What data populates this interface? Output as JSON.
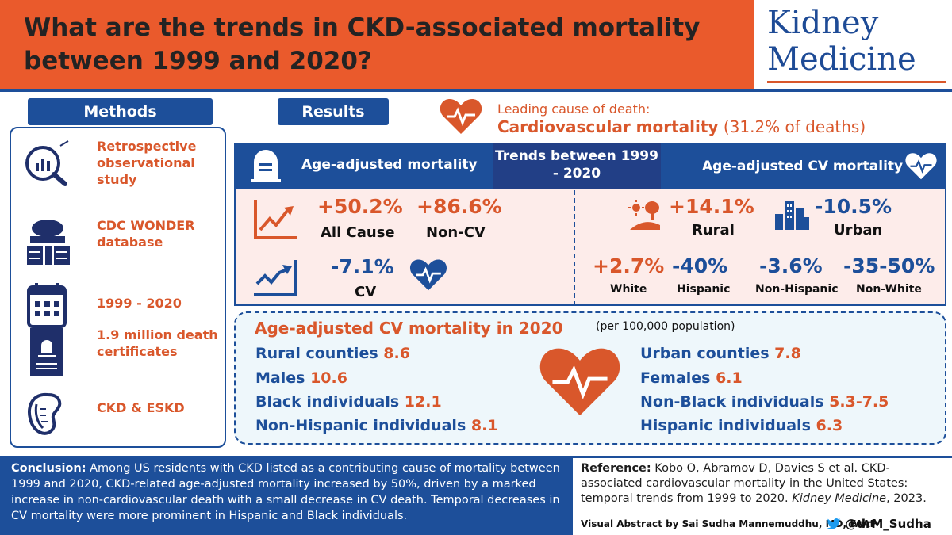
{
  "header": {
    "title": "What are the trends in CKD-associated mortality between 1999 and 2020?"
  },
  "logo": {
    "line1": "Kidney",
    "line2": "Medicine"
  },
  "methods": {
    "tab": "Methods",
    "items": [
      {
        "text": "Retrospective observational study",
        "icon": "study-icon"
      },
      {
        "text": "CDC WONDER database",
        "icon": "database-icon"
      },
      {
        "text": "1999 - 2020",
        "icon": "calendar-icon"
      },
      {
        "text": "1.9 million death certificates",
        "icon": "death-certificate-icon"
      },
      {
        "text": "CKD & ESKD",
        "icon": "kidney-icon"
      }
    ]
  },
  "results": {
    "tab": "Results",
    "leading_cause_label": "Leading cause of death:",
    "leading_cause_main": "Cardiovascular mortality",
    "leading_cause_pct": "(31.2% of deaths)",
    "header_left": "Age-adjusted mortality",
    "header_center": "Trends between 1999 - 2020",
    "header_right": "Age-adjusted CV mortality",
    "left": {
      "all_cause_pct": "+50.2%",
      "all_cause_label": "All Cause",
      "non_cv_pct": "+86.6%",
      "non_cv_label": "Non-CV",
      "cv_pct": "-7.1%",
      "cv_label": "CV"
    },
    "right": {
      "rural_pct": "+14.1%",
      "rural_label": "Rural",
      "urban_pct": "-10.5%",
      "urban_label": "Urban",
      "white_pct": "+2.7%",
      "white_label": "White",
      "hispanic_pct": "-40%",
      "hispanic_label": "Hispanic",
      "non_hispanic_pct": "-3.6%",
      "non_hispanic_label": "Non-Hispanic",
      "non_white_pct": "-35-50%",
      "non_white_label": "Non-White"
    }
  },
  "mortality_2020": {
    "title": "Age-adjusted CV mortality in 2020",
    "subtitle": "(per 100,000 population)",
    "left": [
      {
        "label": "Rural counties",
        "value": "8.6"
      },
      {
        "label": "Males",
        "value": "10.6"
      },
      {
        "label": "Black individuals",
        "value": "12.1"
      },
      {
        "label": "Non-Hispanic individuals",
        "value": "8.1"
      }
    ],
    "right": [
      {
        "label": "Urban counties",
        "value": "7.8"
      },
      {
        "label": "Females",
        "value": "6.1"
      },
      {
        "label": "Non-Black individuals",
        "value": "5.3-7.5"
      },
      {
        "label": "Hispanic individuals",
        "value": "6.3"
      }
    ]
  },
  "conclusion": {
    "label": "Conclusion:",
    "text": "Among US residents with CKD listed as a contributing cause of mortality between 1999 and 2020, CKD-related age-adjusted mortality increased by 50%, driven by a marked increase in non-cardiovascular death with a small decrease in CV death. Temporal decreases in CV mortality were more prominent in Hispanic and Black individuals."
  },
  "reference": {
    "label": "Reference:",
    "text": "Kobo O, Abramov D, Davies S et al. CKD-associated cardiovascular mortality in the United States: temporal trends from 1999 to 2020.",
    "journal": "Kidney Medicine",
    "year": ", 2023.",
    "credit": "Visual Abstract by Sai Sudha Mannemuddhu, MD, FAAP",
    "twitter": "@drM_Sudha"
  },
  "colors": {
    "orange": "#ea5a2c",
    "blue": "#1d4f9a",
    "pink": "#fdecea",
    "light_blue": "#eef7fb"
  }
}
